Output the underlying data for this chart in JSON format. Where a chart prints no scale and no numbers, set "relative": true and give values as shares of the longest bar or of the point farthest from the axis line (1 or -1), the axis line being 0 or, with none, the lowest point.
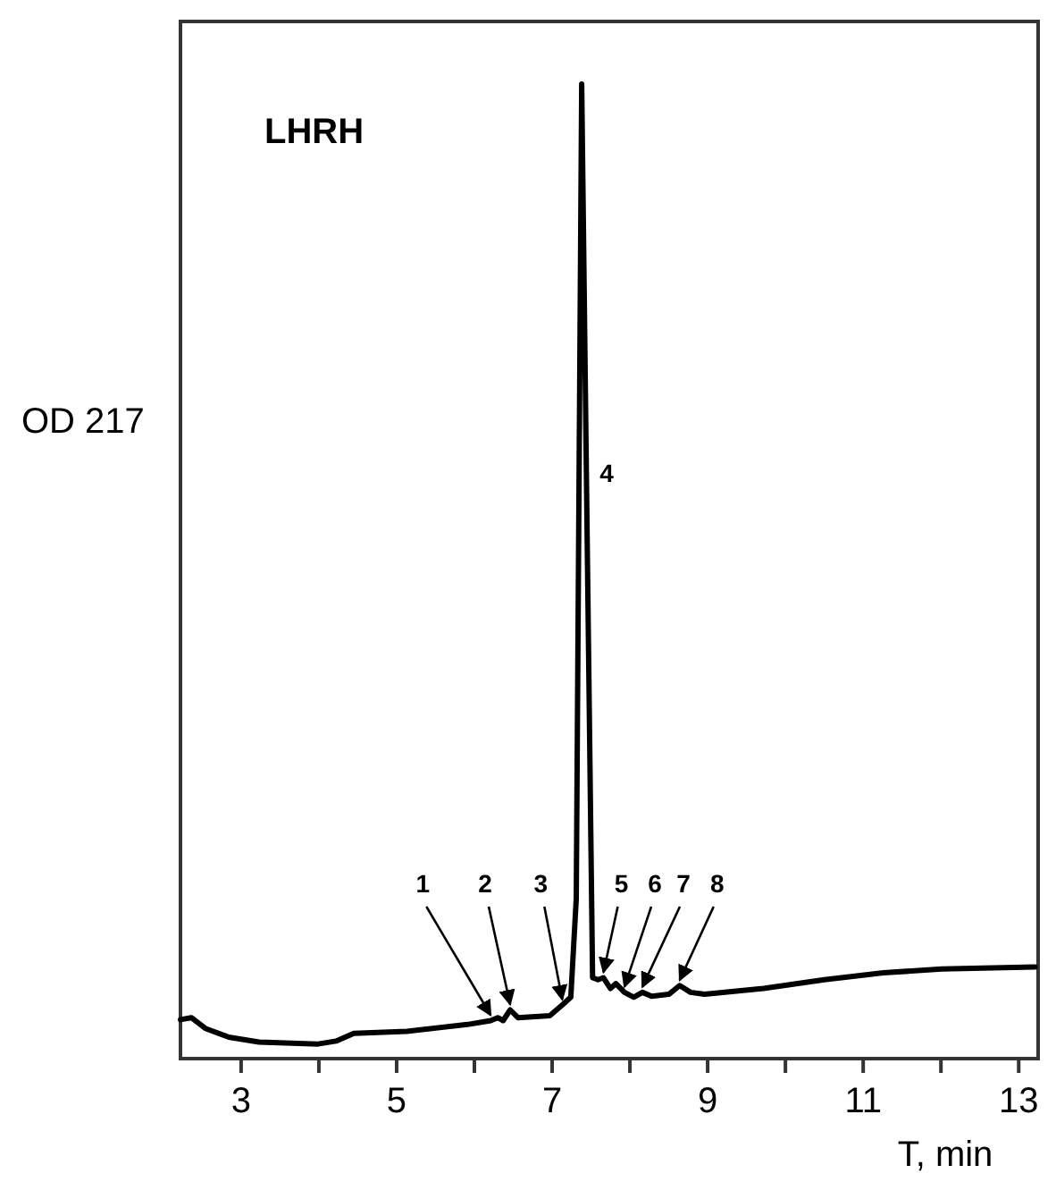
{
  "chart_data": {
    "type": "line",
    "title": "LHRH",
    "xlabel": "T, min",
    "ylabel": "OD 217",
    "relative": true,
    "xlim": [
      2.22,
      13.25
    ],
    "xticks": [
      3,
      {
        "value": 4,
        "label": null
      },
      5,
      {
        "value": 6,
        "label": null
      },
      7,
      {
        "value": 8,
        "label": null
      },
      9,
      {
        "value": 10,
        "label": null
      },
      11,
      {
        "value": 12,
        "label": null
      },
      13
    ],
    "series": [
      {
        "color": "#000000",
        "x": [
          2.22,
          2.36,
          2.54,
          2.84,
          3.23,
          3.99,
          4.22,
          4.45,
          5.13,
          5.91,
          6.21,
          6.3,
          6.37,
          6.46,
          6.56,
          6.97,
          7.13,
          7.24,
          7.31,
          7.38,
          7.45,
          7.52,
          7.59,
          7.66,
          7.75,
          7.82,
          7.93,
          8.05,
          8.16,
          8.28,
          8.5,
          8.64,
          8.78,
          8.96,
          9.72,
          10.5,
          11.26,
          12.01,
          13.21
        ],
        "values": [
          0.04,
          0.042,
          0.031,
          0.022,
          0.017,
          0.015,
          0.018,
          0.026,
          0.028,
          0.035,
          0.039,
          0.042,
          0.039,
          0.05,
          0.042,
          0.044,
          0.055,
          0.063,
          0.164,
          1.0,
          0.537,
          0.083,
          0.081,
          0.083,
          0.072,
          0.077,
          0.068,
          0.063,
          0.068,
          0.064,
          0.066,
          0.075,
          0.068,
          0.066,
          0.072,
          0.081,
          0.088,
          0.092,
          0.094
        ]
      }
    ],
    "annotations": [
      {
        "text": "1",
        "x": 6.21,
        "y": 0.039
      },
      {
        "text": "2",
        "x": 6.46,
        "y": 0.05
      },
      {
        "text": "3",
        "x": 7.13,
        "y": 0.055
      },
      {
        "text": "4",
        "x": 7.45,
        "y": 0.537
      },
      {
        "text": "5",
        "x": 7.66,
        "y": 0.083
      },
      {
        "text": "6",
        "x": 7.93,
        "y": 0.068
      },
      {
        "text": "7",
        "x": 8.16,
        "y": 0.068
      },
      {
        "text": "8",
        "x": 8.64,
        "y": 0.075
      }
    ],
    "grid": false,
    "marker": "none",
    "line_style": "solid"
  }
}
